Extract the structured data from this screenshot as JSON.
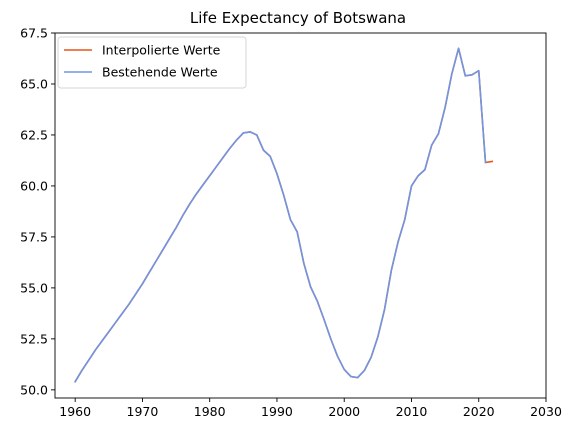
{
  "chart_data": {
    "type": "line",
    "title": "Life Expectancy of Botswana",
    "xlabel": "",
    "ylabel": "",
    "xlim": [
      1957.0,
      2030
    ],
    "ylim": [
      49.6,
      67.5
    ],
    "x_ticks": [
      1960,
      1970,
      1980,
      1990,
      2000,
      2010,
      2020,
      2030
    ],
    "y_ticks": [
      50.0,
      52.5,
      55.0,
      57.5,
      60.0,
      62.5,
      65.0,
      67.5
    ],
    "y_tick_labels": [
      "50.0",
      "52.5",
      "55.0",
      "57.5",
      "60.0",
      "62.5",
      "65.0",
      "67.5"
    ],
    "grid": false,
    "legend_position": "top-left",
    "series": [
      {
        "name": "Interpolierte Werte",
        "color": "#e8541c",
        "x": [
          1960,
          1961,
          1962,
          1963,
          1964,
          1965,
          1966,
          1967,
          1968,
          1969,
          1970,
          1971,
          1972,
          1973,
          1974,
          1975,
          1976,
          1977,
          1978,
          1979,
          1980,
          1981,
          1982,
          1983,
          1984,
          1985,
          1986,
          1987,
          1988,
          1989,
          1990,
          1991,
          1992,
          1993,
          1994,
          1995,
          1996,
          1997,
          1998,
          1999,
          2000,
          2001,
          2002,
          2003,
          2004,
          2005,
          2006,
          2007,
          2008,
          2009,
          2010,
          2011,
          2012,
          2013,
          2014,
          2015,
          2016,
          2017,
          2018,
          2019,
          2020,
          2021,
          2022
        ],
        "values": [
          50.4,
          50.95,
          51.45,
          51.95,
          52.4,
          52.85,
          53.3,
          53.75,
          54.2,
          54.7,
          55.2,
          55.75,
          56.3,
          56.85,
          57.4,
          57.95,
          58.55,
          59.1,
          59.6,
          60.05,
          60.5,
          60.95,
          61.4,
          61.85,
          62.25,
          62.6,
          62.65,
          62.5,
          61.75,
          61.45,
          60.6,
          59.55,
          58.35,
          57.75,
          56.2,
          55.05,
          54.35,
          53.45,
          52.5,
          51.65,
          51.0,
          50.65,
          50.6,
          50.95,
          51.6,
          52.6,
          53.95,
          55.85,
          57.25,
          58.35,
          60.0,
          60.5,
          60.8,
          62.0,
          62.55,
          63.85,
          65.5,
          66.75,
          65.4,
          65.45,
          65.65,
          61.15,
          61.2
        ]
      },
      {
        "name": "Bestehende Werte",
        "color": "#6f95e3",
        "x": [
          1960,
          1961,
          1962,
          1963,
          1964,
          1965,
          1966,
          1967,
          1968,
          1969,
          1970,
          1971,
          1972,
          1973,
          1974,
          1975,
          1976,
          1977,
          1978,
          1979,
          1980,
          1981,
          1982,
          1983,
          1984,
          1985,
          1986,
          1987,
          1988,
          1989,
          1990,
          1991,
          1992,
          1993,
          1994,
          1995,
          1996,
          1997,
          1998,
          1999,
          2000,
          2001,
          2002,
          2003,
          2004,
          2005,
          2006,
          2007,
          2008,
          2009,
          2010,
          2011,
          2012,
          2013,
          2014,
          2015,
          2016,
          2017,
          2018,
          2019,
          2020,
          2021
        ],
        "values": [
          50.4,
          50.95,
          51.45,
          51.95,
          52.4,
          52.85,
          53.3,
          53.75,
          54.2,
          54.7,
          55.2,
          55.75,
          56.3,
          56.85,
          57.4,
          57.95,
          58.55,
          59.1,
          59.6,
          60.05,
          60.5,
          60.95,
          61.4,
          61.85,
          62.25,
          62.6,
          62.65,
          62.5,
          61.75,
          61.45,
          60.6,
          59.55,
          58.35,
          57.75,
          56.2,
          55.05,
          54.35,
          53.45,
          52.5,
          51.65,
          51.0,
          50.65,
          50.6,
          50.95,
          51.6,
          52.6,
          53.95,
          55.85,
          57.25,
          58.35,
          60.0,
          60.5,
          60.8,
          62.0,
          62.55,
          63.85,
          65.5,
          66.75,
          65.4,
          65.45,
          65.65,
          61.15
        ]
      }
    ]
  }
}
